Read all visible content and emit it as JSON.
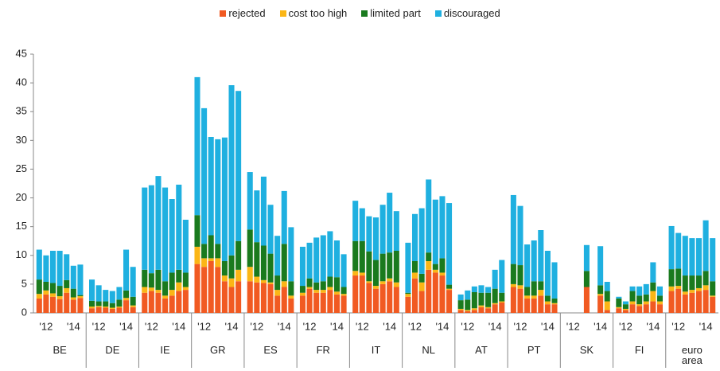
{
  "chart_data": {
    "type": "stacked-bar",
    "groups": [
      "BE",
      "DE",
      "IE",
      "GR",
      "ES",
      "FR",
      "IT",
      "NL",
      "AT",
      "PT",
      "SK",
      "FI",
      "euro area"
    ],
    "categories": [
      null,
      "'12",
      null,
      null,
      null,
      "'14",
      null,
      null,
      "'12",
      null,
      null,
      null,
      "'14",
      null,
      null,
      "'12",
      null,
      null,
      null,
      "'14",
      null,
      null,
      "'12",
      null,
      null,
      null,
      "'14",
      null,
      null,
      "'12",
      null,
      null,
      null,
      "'14",
      null,
      null,
      "'12",
      null,
      null,
      null,
      "'14",
      null,
      null,
      "'12",
      null,
      null,
      null,
      "'14",
      null,
      null,
      "'12",
      null,
      null,
      null,
      "'14",
      null,
      null,
      "'12",
      null,
      null,
      null,
      "'14",
      null,
      null,
      "'12",
      null,
      null,
      null,
      "'14",
      null,
      null,
      "'12",
      null,
      null,
      null,
      "'14",
      null,
      null,
      "'12",
      null,
      null,
      null,
      "'14",
      null,
      null,
      "'12",
      null,
      null,
      null,
      "'14",
      null
    ],
    "series": [
      {
        "name": "rejected",
        "color": "#f15a22",
        "values": [
          2.5,
          3.2,
          2.8,
          2.4,
          3.5,
          2.3,
          2.6,
          0.8,
          1.0,
          0.9,
          0.7,
          0.9,
          2.2,
          1.0,
          3.5,
          3.8,
          3.5,
          2.5,
          3.0,
          3.8,
          4.0,
          8.5,
          8.0,
          9.0,
          8.0,
          5.5,
          4.5,
          5.5,
          5.5,
          5.3,
          5.2,
          5.0,
          3.0,
          4.5,
          2.5,
          3.0,
          4.2,
          3.5,
          3.5,
          4.0,
          3.2,
          3.0,
          6.5,
          6.5,
          5.2,
          4.2,
          5.0,
          5.5,
          4.5,
          2.8,
          6.0,
          3.8,
          7.5,
          7.0,
          6.5,
          4.0,
          0.5,
          0.3,
          0.5,
          1.0,
          0.8,
          1.5,
          1.8,
          4.5,
          4.2,
          2.5,
          2.5,
          3.0,
          1.5,
          1.5,
          null,
          null,
          null,
          4.5,
          null,
          3.0,
          0.5,
          0.8,
          0.5,
          1.5,
          1.2,
          1.5,
          2.0,
          1.5,
          3.8,
          4.2,
          3.2,
          3.5,
          3.8,
          4.0,
          2.8
        ]
      },
      {
        "name": "cost too high",
        "color": "#fbb616",
        "values": [
          0.8,
          0.7,
          0.6,
          0.5,
          0.8,
          0.4,
          0.3,
          0.3,
          0.2,
          0.2,
          0.2,
          0.2,
          0.4,
          0.3,
          1.0,
          0.6,
          0.5,
          0.5,
          1.0,
          1.5,
          0.5,
          3.0,
          1.5,
          0.5,
          1.5,
          1.0,
          1.5,
          2.0,
          2.5,
          1.0,
          0.5,
          0.3,
          1.0,
          1.0,
          0.5,
          0.5,
          0.3,
          0.5,
          0.5,
          0.5,
          0.5,
          0.3,
          0.8,
          0.5,
          0.3,
          0.5,
          0.5,
          0.5,
          0.8,
          0.5,
          1.0,
          1.5,
          1.5,
          0.5,
          0.5,
          0.2,
          0.2,
          0.2,
          0.3,
          0.3,
          0.2,
          0.2,
          0.2,
          0.5,
          0.6,
          0.5,
          0.5,
          1.0,
          0.5,
          0.2,
          null,
          null,
          null,
          0,
          null,
          0.3,
          1.5,
          0.2,
          0.2,
          0.5,
          0.3,
          0.5,
          1.8,
          0.5,
          0.8,
          0.5,
          0.5,
          0.5,
          0.5,
          0.8,
          0.2
        ]
      },
      {
        "name": "limited part",
        "color": "#1a7a1e",
        "values": [
          2.5,
          1.5,
          1.8,
          1.8,
          1.4,
          1.5,
          0.2,
          1.0,
          0.8,
          0.9,
          0.8,
          1.2,
          1.3,
          1.5,
          3.0,
          2.5,
          3.5,
          2.5,
          3.0,
          2.2,
          2.5,
          5.5,
          2.5,
          4.0,
          2.5,
          2.5,
          4.0,
          5.0,
          6.5,
          6.0,
          6.0,
          5.0,
          2.5,
          6.5,
          2.5,
          1.2,
          1.5,
          1.3,
          1.5,
          1.8,
          2.5,
          1.2,
          5.2,
          5.5,
          5.2,
          4.5,
          4.8,
          4.5,
          5.5,
          0.2,
          2.0,
          1.5,
          1.5,
          1.0,
          2.5,
          0.7,
          1.5,
          1.8,
          2.8,
          2.2,
          2.5,
          2.5,
          1.5,
          3.5,
          3.5,
          1.5,
          2.5,
          1.5,
          1.0,
          0.8,
          null,
          null,
          null,
          2.8,
          null,
          1.5,
          1.8,
          1.5,
          0.8,
          1.8,
          1.5,
          1.2,
          1.5,
          1.0,
          3.0,
          3.0,
          2.8,
          2.5,
          2.2,
          2.5,
          2.5
        ]
      },
      {
        "name": "discouraged",
        "color": "#1fb0e0",
        "values": [
          5.2,
          4.6,
          5.6,
          6.1,
          4.5,
          4.0,
          5.3,
          3.7,
          2.8,
          2.0,
          2.1,
          2.2,
          7.1,
          5.2,
          14.3,
          15.3,
          16.3,
          16.3,
          12.8,
          14.8,
          9.2,
          24,
          23.6,
          17.1,
          18.2,
          21.5,
          29.6,
          26.1,
          10,
          9,
          12,
          8.5,
          6.9,
          9.2,
          9.4,
          6.8,
          6.2,
          7.8,
          8.0,
          7.9,
          6.4,
          5.7,
          7.0,
          5.7,
          6.1,
          7.4,
          8.5,
          10.4,
          6.9,
          8.7,
          8.2,
          11.4,
          12.7,
          11.2,
          10.8,
          14.2,
          1.0,
          1.6,
          1.0,
          1.3,
          1.0,
          3.3,
          5.7,
          12,
          10.3,
          7.4,
          7.1,
          8.9,
          7.8,
          6.3,
          null,
          null,
          null,
          4.5,
          null,
          6.8,
          1.6,
          0.3,
          0.5,
          0.8,
          1.6,
          1.8,
          3.5,
          1.6,
          7.5,
          6.2,
          6.9,
          6.5,
          6.5,
          8.8,
          7.5
        ]
      }
    ],
    "ylim": [
      0,
      45
    ],
    "yticks": [
      0,
      5,
      10,
      15,
      20,
      25,
      30,
      35,
      40,
      45
    ],
    "grid": false
  }
}
